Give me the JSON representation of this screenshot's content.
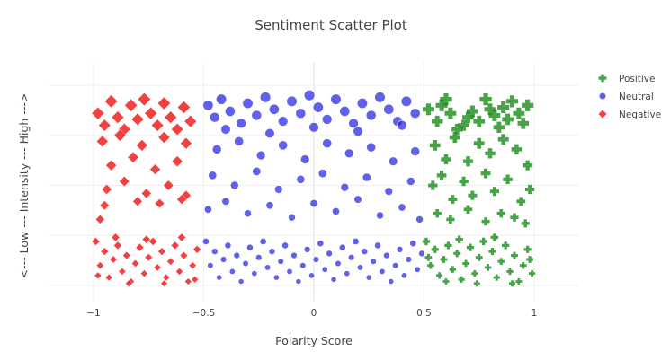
{
  "chart_data": {
    "type": "scatter",
    "title": "Sentiment Scatter Plot",
    "xlabel": "Polarity Score",
    "ylabel": "<--- Low --- Intensity --- High --->",
    "xlim": [
      -1.2,
      1.2
    ],
    "ylim": [
      0,
      1
    ],
    "x_ticks": [
      -1,
      -0.5,
      0,
      0.5,
      1
    ],
    "x_tick_labels": [
      "−1",
      "−0.5",
      "0",
      "0.5",
      "1"
    ],
    "y_tick_labels_visible": false,
    "grid": true,
    "legend_position": "top-right",
    "series": [
      {
        "name": "Positive",
        "marker": "cross",
        "color": "#1a8c1a",
        "points": [
          [
            0.52,
            0.88
          ],
          [
            0.56,
            0.82
          ],
          [
            0.58,
            0.9
          ],
          [
            0.6,
            0.93
          ],
          [
            0.62,
            0.86
          ],
          [
            0.65,
            0.78
          ],
          [
            0.68,
            0.8
          ],
          [
            0.7,
            0.84
          ],
          [
            0.72,
            0.87
          ],
          [
            0.75,
            0.82
          ],
          [
            0.78,
            0.93
          ],
          [
            0.8,
            0.88
          ],
          [
            0.82,
            0.85
          ],
          [
            0.84,
            0.79
          ],
          [
            0.86,
            0.89
          ],
          [
            0.88,
            0.83
          ],
          [
            0.9,
            0.92
          ],
          [
            0.93,
            0.86
          ],
          [
            0.95,
            0.81
          ],
          [
            0.97,
            0.9
          ],
          [
            0.55,
            0.7
          ],
          [
            0.6,
            0.63
          ],
          [
            0.64,
            0.74
          ],
          [
            0.7,
            0.62
          ],
          [
            0.75,
            0.71
          ],
          [
            0.8,
            0.66
          ],
          [
            0.86,
            0.73
          ],
          [
            0.92,
            0.68
          ],
          [
            0.97,
            0.6
          ],
          [
            0.54,
            0.5
          ],
          [
            0.58,
            0.55
          ],
          [
            0.63,
            0.43
          ],
          [
            0.68,
            0.52
          ],
          [
            0.72,
            0.45
          ],
          [
            0.78,
            0.56
          ],
          [
            0.82,
            0.47
          ],
          [
            0.88,
            0.53
          ],
          [
            0.94,
            0.42
          ],
          [
            0.98,
            0.48
          ],
          [
            0.56,
            0.36
          ],
          [
            0.62,
            0.33
          ],
          [
            0.7,
            0.38
          ],
          [
            0.78,
            0.32
          ],
          [
            0.85,
            0.36
          ],
          [
            0.91,
            0.34
          ],
          [
            0.96,
            0.31
          ],
          [
            0.51,
            0.22
          ],
          [
            0.53,
            0.1
          ],
          [
            0.55,
            0.18
          ],
          [
            0.57,
            0.05
          ],
          [
            0.59,
            0.13
          ],
          [
            0.61,
            0.2
          ],
          [
            0.63,
            0.08
          ],
          [
            0.65,
            0.16
          ],
          [
            0.67,
            0.03
          ],
          [
            0.69,
            0.11
          ],
          [
            0.71,
            0.19
          ],
          [
            0.73,
            0.06
          ],
          [
            0.75,
            0.14
          ],
          [
            0.77,
            0.22
          ],
          [
            0.79,
            0.09
          ],
          [
            0.81,
            0.17
          ],
          [
            0.83,
            0.04
          ],
          [
            0.85,
            0.12
          ],
          [
            0.87,
            0.2
          ],
          [
            0.89,
            0.07
          ],
          [
            0.91,
            0.15
          ],
          [
            0.93,
            0.02
          ],
          [
            0.95,
            0.1
          ],
          [
            0.97,
            0.18
          ],
          [
            0.99,
            0.06
          ],
          [
            0.52,
            0.14
          ],
          [
            0.6,
            0.02
          ],
          [
            0.66,
            0.23
          ],
          [
            0.74,
            0.01
          ],
          [
            0.82,
            0.24
          ],
          [
            0.9,
            0.01
          ],
          [
            0.98,
            0.13
          ]
        ]
      },
      {
        "name": "Neutral",
        "marker": "circle",
        "color": "#2b2be0",
        "points": [
          [
            -0.48,
            0.9
          ],
          [
            -0.45,
            0.84
          ],
          [
            -0.42,
            0.93
          ],
          [
            -0.38,
            0.87
          ],
          [
            -0.33,
            0.81
          ],
          [
            -0.3,
            0.91
          ],
          [
            -0.26,
            0.85
          ],
          [
            -0.22,
            0.94
          ],
          [
            -0.18,
            0.88
          ],
          [
            -0.14,
            0.82
          ],
          [
            -0.1,
            0.92
          ],
          [
            -0.06,
            0.86
          ],
          [
            -0.02,
            0.95
          ],
          [
            0.02,
            0.89
          ],
          [
            0.06,
            0.83
          ],
          [
            0.1,
            0.93
          ],
          [
            0.14,
            0.87
          ],
          [
            0.18,
            0.81
          ],
          [
            0.22,
            0.91
          ],
          [
            0.26,
            0.85
          ],
          [
            0.3,
            0.94
          ],
          [
            0.34,
            0.88
          ],
          [
            0.38,
            0.82
          ],
          [
            0.42,
            0.92
          ],
          [
            0.46,
            0.86
          ],
          [
            -0.4,
            0.78
          ],
          [
            -0.2,
            0.76
          ],
          [
            0.0,
            0.79
          ],
          [
            0.2,
            0.77
          ],
          [
            0.4,
            0.8
          ],
          [
            -0.44,
            0.68
          ],
          [
            -0.34,
            0.72
          ],
          [
            -0.24,
            0.65
          ],
          [
            -0.14,
            0.7
          ],
          [
            -0.04,
            0.63
          ],
          [
            0.06,
            0.71
          ],
          [
            0.16,
            0.66
          ],
          [
            0.26,
            0.69
          ],
          [
            0.36,
            0.62
          ],
          [
            0.46,
            0.67
          ],
          [
            -0.46,
            0.55
          ],
          [
            -0.36,
            0.5
          ],
          [
            -0.26,
            0.57
          ],
          [
            -0.16,
            0.48
          ],
          [
            -0.06,
            0.53
          ],
          [
            0.04,
            0.56
          ],
          [
            0.14,
            0.49
          ],
          [
            0.24,
            0.54
          ],
          [
            0.34,
            0.47
          ],
          [
            0.44,
            0.52
          ],
          [
            -0.48,
            0.38
          ],
          [
            -0.4,
            0.42
          ],
          [
            -0.3,
            0.36
          ],
          [
            -0.2,
            0.4
          ],
          [
            -0.1,
            0.34
          ],
          [
            0.0,
            0.41
          ],
          [
            0.1,
            0.37
          ],
          [
            0.2,
            0.43
          ],
          [
            0.3,
            0.35
          ],
          [
            0.4,
            0.39
          ],
          [
            0.48,
            0.33
          ],
          [
            -0.49,
            0.22
          ],
          [
            -0.47,
            0.1
          ],
          [
            -0.45,
            0.17
          ],
          [
            -0.43,
            0.04
          ],
          [
            -0.41,
            0.13
          ],
          [
            -0.39,
            0.2
          ],
          [
            -0.37,
            0.07
          ],
          [
            -0.35,
            0.15
          ],
          [
            -0.33,
            0.02
          ],
          [
            -0.31,
            0.11
          ],
          [
            -0.29,
            0.19
          ],
          [
            -0.27,
            0.06
          ],
          [
            -0.25,
            0.14
          ],
          [
            -0.23,
            0.22
          ],
          [
            -0.21,
            0.09
          ],
          [
            -0.19,
            0.17
          ],
          [
            -0.17,
            0.04
          ],
          [
            -0.15,
            0.12
          ],
          [
            -0.13,
            0.2
          ],
          [
            -0.11,
            0.07
          ],
          [
            -0.09,
            0.15
          ],
          [
            -0.07,
            0.02
          ],
          [
            -0.05,
            0.1
          ],
          [
            -0.03,
            0.18
          ],
          [
            -0.01,
            0.05
          ],
          [
            0.01,
            0.13
          ],
          [
            0.03,
            0.21
          ],
          [
            0.05,
            0.08
          ],
          [
            0.07,
            0.16
          ],
          [
            0.09,
            0.03
          ],
          [
            0.11,
            0.11
          ],
          [
            0.13,
            0.19
          ],
          [
            0.15,
            0.06
          ],
          [
            0.17,
            0.14
          ],
          [
            0.19,
            0.22
          ],
          [
            0.21,
            0.09
          ],
          [
            0.23,
            0.17
          ],
          [
            0.25,
            0.04
          ],
          [
            0.27,
            0.12
          ],
          [
            0.29,
            0.2
          ],
          [
            0.31,
            0.07
          ],
          [
            0.33,
            0.15
          ],
          [
            0.35,
            0.02
          ],
          [
            0.37,
            0.1
          ],
          [
            0.39,
            0.18
          ],
          [
            0.41,
            0.05
          ],
          [
            0.43,
            0.13
          ],
          [
            0.45,
            0.21
          ],
          [
            0.47,
            0.08
          ],
          [
            0.49,
            0.16
          ]
        ]
      },
      {
        "name": "Negative",
        "marker": "diamond",
        "color": "#ee1111",
        "points": [
          [
            -0.98,
            0.86
          ],
          [
            -0.95,
            0.8
          ],
          [
            -0.92,
            0.92
          ],
          [
            -0.89,
            0.84
          ],
          [
            -0.86,
            0.78
          ],
          [
            -0.83,
            0.9
          ],
          [
            -0.8,
            0.83
          ],
          [
            -0.77,
            0.93
          ],
          [
            -0.74,
            0.86
          ],
          [
            -0.71,
            0.8
          ],
          [
            -0.68,
            0.91
          ],
          [
            -0.65,
            0.84
          ],
          [
            -0.62,
            0.78
          ],
          [
            -0.59,
            0.89
          ],
          [
            -0.56,
            0.82
          ],
          [
            -0.96,
            0.72
          ],
          [
            -0.88,
            0.75
          ],
          [
            -0.78,
            0.7
          ],
          [
            -0.68,
            0.74
          ],
          [
            -0.58,
            0.71
          ],
          [
            -0.92,
            0.6
          ],
          [
            -0.82,
            0.64
          ],
          [
            -0.72,
            0.58
          ],
          [
            -0.62,
            0.62
          ],
          [
            -0.94,
            0.48
          ],
          [
            -0.86,
            0.52
          ],
          [
            -0.76,
            0.46
          ],
          [
            -0.66,
            0.5
          ],
          [
            -0.58,
            0.45
          ],
          [
            -0.95,
            0.4
          ],
          [
            -0.8,
            0.42
          ],
          [
            -0.7,
            0.41
          ],
          [
            -0.6,
            0.43
          ],
          [
            -0.97,
            0.33
          ],
          [
            -0.99,
            0.22
          ],
          [
            -0.97,
            0.1
          ],
          [
            -0.95,
            0.17
          ],
          [
            -0.93,
            0.04
          ],
          [
            -0.91,
            0.13
          ],
          [
            -0.89,
            0.2
          ],
          [
            -0.87,
            0.07
          ],
          [
            -0.85,
            0.15
          ],
          [
            -0.83,
            0.02
          ],
          [
            -0.81,
            0.11
          ],
          [
            -0.79,
            0.19
          ],
          [
            -0.77,
            0.06
          ],
          [
            -0.75,
            0.14
          ],
          [
            -0.73,
            0.22
          ],
          [
            -0.71,
            0.09
          ],
          [
            -0.69,
            0.17
          ],
          [
            -0.67,
            0.04
          ],
          [
            -0.65,
            0.12
          ],
          [
            -0.63,
            0.2
          ],
          [
            -0.61,
            0.07
          ],
          [
            -0.59,
            0.15
          ],
          [
            -0.57,
            0.02
          ],
          [
            -0.55,
            0.1
          ],
          [
            -0.53,
            0.18
          ],
          [
            -0.98,
            0.05
          ],
          [
            -0.9,
            0.24
          ],
          [
            -0.84,
            0.01
          ],
          [
            -0.76,
            0.23
          ],
          [
            -0.68,
            0.01
          ],
          [
            -0.6,
            0.24
          ],
          [
            -0.54,
            0.03
          ]
        ]
      }
    ]
  }
}
